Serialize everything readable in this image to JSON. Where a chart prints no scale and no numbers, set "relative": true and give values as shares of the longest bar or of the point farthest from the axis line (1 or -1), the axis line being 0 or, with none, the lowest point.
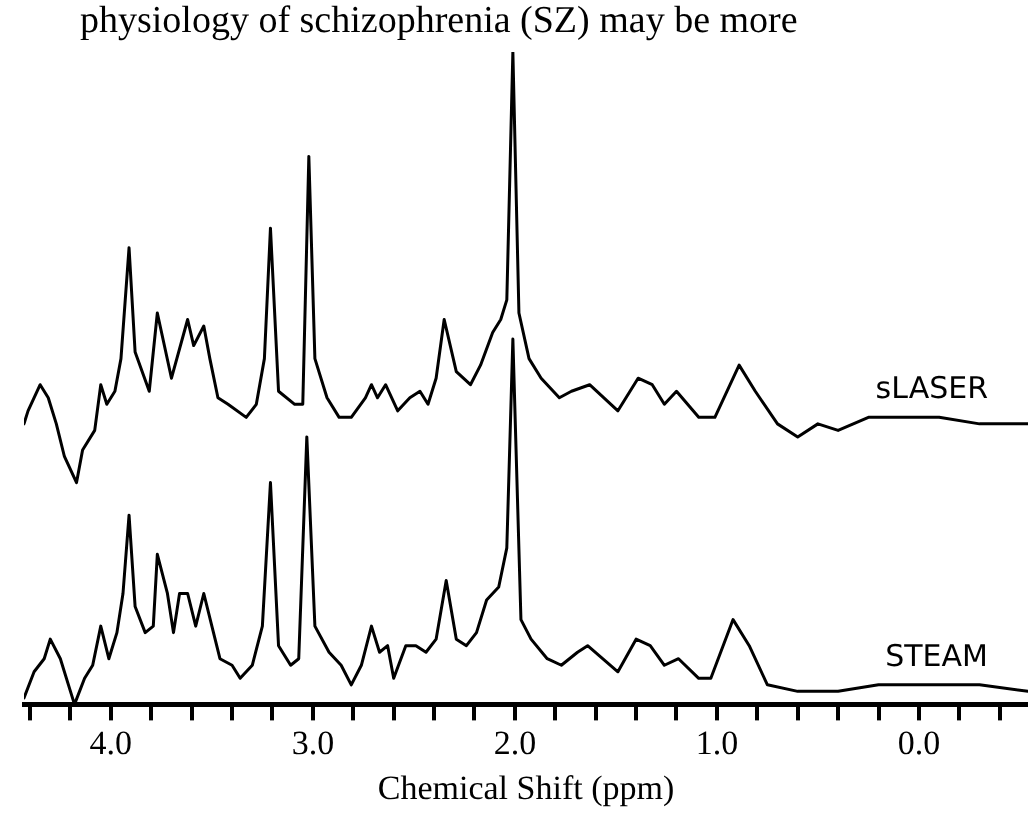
{
  "chart_data": {
    "type": "line",
    "relative": true,
    "xlabel": "Chemical Shift (ppm)",
    "annotations": [
      "physiology of schizophrenia (SZ) may be more"
    ],
    "xlim": [
      4.43,
      -0.54
    ],
    "xticks": [
      {
        "value": 4.4,
        "label": null
      },
      {
        "value": 4.2,
        "label": null
      },
      {
        "value": 4,
        "label": "4.0"
      },
      {
        "value": 3.8,
        "label": null
      },
      {
        "value": 3.6,
        "label": null
      },
      {
        "value": 3.4,
        "label": null
      },
      {
        "value": 3.2,
        "label": null
      },
      {
        "value": 3,
        "label": "3.0"
      },
      {
        "value": 2.8,
        "label": null
      },
      {
        "value": 2.6,
        "label": null
      },
      {
        "value": 2.4,
        "label": null
      },
      {
        "value": 2.2,
        "label": null
      },
      {
        "value": 2,
        "label": "2.0"
      },
      {
        "value": 1.8,
        "label": null
      },
      {
        "value": 1.6,
        "label": null
      },
      {
        "value": 1.4,
        "label": null
      },
      {
        "value": 1.2,
        "label": null
      },
      {
        "value": 1,
        "label": "1.0"
      },
      {
        "value": 0.8,
        "label": null
      },
      {
        "value": 0.6,
        "label": null
      },
      {
        "value": 0.4,
        "label": null
      },
      {
        "value": 0.2,
        "label": null
      },
      {
        "value": 0,
        "label": "0.0"
      },
      {
        "value": -0.2,
        "label": null
      },
      {
        "value": -0.4,
        "label": null
      }
    ],
    "tick_labels": "x",
    "grid": false,
    "legend": false,
    "marker": "none",
    "line_style": "solid",
    "series": [
      {
        "name": "sLASER",
        "color": "#000000",
        "x": [
          4.43,
          4.41,
          4.35,
          4.31,
          4.27,
          4.23,
          4.17,
          4.14,
          4.08,
          4.05,
          4.02,
          3.98,
          3.95,
          3.91,
          3.88,
          3.81,
          3.77,
          3.7,
          3.62,
          3.59,
          3.54,
          3.51,
          3.47,
          3.42,
          3.33,
          3.28,
          3.24,
          3.21,
          3.17,
          3.09,
          3.05,
          3.02,
          2.99,
          2.93,
          2.87,
          2.81,
          2.74,
          2.71,
          2.68,
          2.64,
          2.58,
          2.52,
          2.47,
          2.43,
          2.39,
          2.35,
          2.29,
          2.22,
          2.17,
          2.11,
          2.07,
          2.04,
          2.01,
          1.98,
          1.93,
          1.87,
          1.78,
          1.72,
          1.63,
          1.49,
          1.39,
          1.32,
          1.26,
          1.2,
          1.09,
          1.01,
          0.89,
          0.81,
          0.7,
          0.6,
          0.5,
          0.4,
          0.25,
          0.1,
          -0.1,
          -0.3,
          -0.54
        ],
        "values": [
          0.43,
          0.45,
          0.49,
          0.47,
          0.43,
          0.38,
          0.34,
          0.39,
          0.42,
          0.49,
          0.46,
          0.48,
          0.53,
          0.7,
          0.54,
          0.48,
          0.6,
          0.5,
          0.59,
          0.55,
          0.58,
          0.53,
          0.47,
          0.46,
          0.44,
          0.46,
          0.53,
          0.73,
          0.48,
          0.46,
          0.46,
          0.84,
          0.53,
          0.47,
          0.44,
          0.44,
          0.47,
          0.49,
          0.47,
          0.49,
          0.45,
          0.47,
          0.48,
          0.46,
          0.5,
          0.59,
          0.51,
          0.49,
          0.52,
          0.57,
          0.59,
          0.62,
          1.0,
          0.6,
          0.53,
          0.5,
          0.47,
          0.48,
          0.49,
          0.45,
          0.5,
          0.49,
          0.46,
          0.48,
          0.44,
          0.44,
          0.52,
          0.48,
          0.43,
          0.41,
          0.43,
          0.42,
          0.44,
          0.44,
          0.44,
          0.43,
          0.43
        ]
      },
      {
        "name": "STEAM",
        "color": "#000000",
        "x": [
          4.43,
          4.38,
          4.33,
          4.3,
          4.25,
          4.21,
          4.18,
          4.13,
          4.09,
          4.05,
          4.01,
          3.97,
          3.94,
          3.91,
          3.88,
          3.83,
          3.79,
          3.77,
          3.72,
          3.69,
          3.66,
          3.62,
          3.58,
          3.54,
          3.5,
          3.46,
          3.4,
          3.36,
          3.3,
          3.25,
          3.21,
          3.17,
          3.11,
          3.07,
          3.03,
          2.99,
          2.92,
          2.86,
          2.81,
          2.76,
          2.71,
          2.67,
          2.63,
          2.6,
          2.54,
          2.49,
          2.44,
          2.39,
          2.34,
          2.29,
          2.24,
          2.19,
          2.14,
          2.08,
          2.04,
          2.01,
          1.97,
          1.92,
          1.84,
          1.77,
          1.69,
          1.64,
          1.49,
          1.4,
          1.33,
          1.26,
          1.19,
          1.09,
          1.03,
          0.92,
          0.84,
          0.75,
          0.6,
          0.4,
          0.2,
          0.0,
          -0.3,
          -0.54
        ],
        "values": [
          0.01,
          0.05,
          0.07,
          0.1,
          0.07,
          0.03,
          0.0,
          0.04,
          0.06,
          0.12,
          0.07,
          0.11,
          0.17,
          0.29,
          0.15,
          0.11,
          0.12,
          0.23,
          0.17,
          0.11,
          0.17,
          0.17,
          0.12,
          0.17,
          0.12,
          0.07,
          0.06,
          0.04,
          0.06,
          0.12,
          0.34,
          0.09,
          0.06,
          0.07,
          0.41,
          0.12,
          0.08,
          0.06,
          0.03,
          0.06,
          0.12,
          0.08,
          0.09,
          0.04,
          0.09,
          0.09,
          0.08,
          0.1,
          0.19,
          0.1,
          0.09,
          0.11,
          0.16,
          0.18,
          0.24,
          0.56,
          0.13,
          0.1,
          0.07,
          0.06,
          0.08,
          0.09,
          0.05,
          0.1,
          0.09,
          0.06,
          0.07,
          0.04,
          0.04,
          0.13,
          0.09,
          0.03,
          0.02,
          0.02,
          0.03,
          0.03,
          0.03,
          0.02
        ]
      }
    ]
  }
}
